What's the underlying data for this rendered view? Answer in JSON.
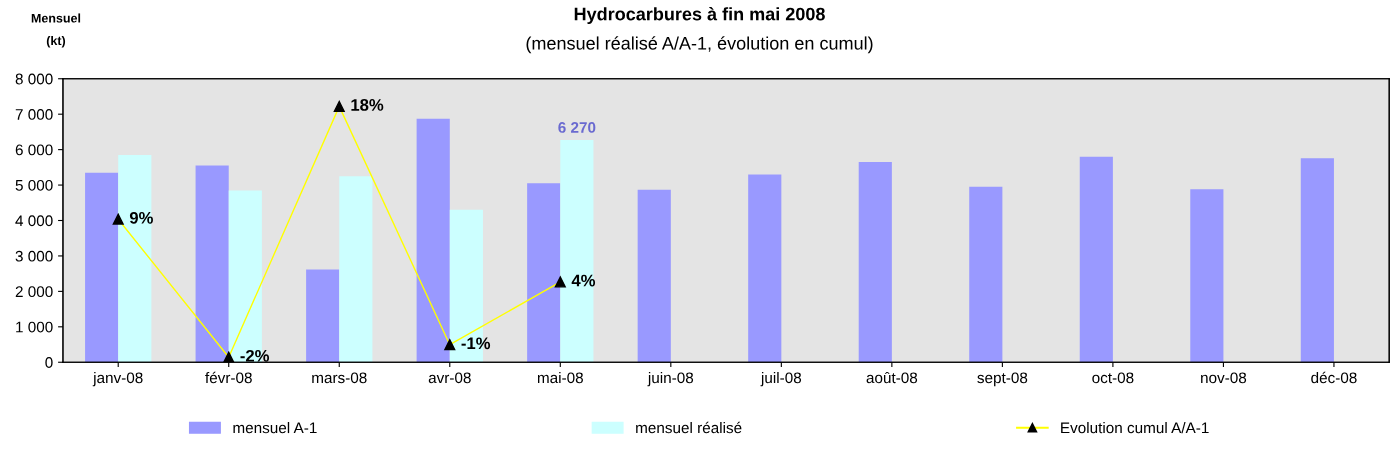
{
  "chart_data": {
    "type": "bar",
    "title": "Hydrocarbures à fin mai 2008",
    "subtitle": "(mensuel réalisé A/A-1, évolution en cumul)",
    "ylabel": "Mensuel\n(kt)",
    "categories": [
      "janv-08",
      "févr-08",
      "mars-08",
      "avr-08",
      "mai-08",
      "juin-08",
      "juil-08",
      "août-08",
      "sept-08",
      "oct-08",
      "nov-08",
      "déc-08"
    ],
    "series": [
      {
        "name": "mensuel A-1",
        "color": "#9999ff",
        "values": [
          5350,
          5550,
          2620,
          6870,
          5050,
          4870,
          5300,
          5650,
          4950,
          5800,
          4880,
          5760
        ]
      },
      {
        "name": "mensuel réalisé",
        "color": "#ccffff",
        "values": [
          5850,
          4850,
          5250,
          4300,
          6270,
          null,
          null,
          null,
          null,
          null,
          null,
          null
        ],
        "value_labels": [
          null,
          null,
          null,
          null,
          "6 270",
          null,
          null,
          null,
          null,
          null,
          null,
          null
        ]
      },
      {
        "name": "Evolution cumul A/A-1",
        "type": "line",
        "axis": "y2",
        "color": "#ffff00",
        "marker": "triangle",
        "values": [
          9,
          -2,
          18,
          -1,
          4,
          null,
          null,
          null,
          null,
          null,
          null,
          null
        ],
        "value_labels": [
          "9%",
          "-2%",
          "18%",
          "-1%",
          "4%",
          null,
          null,
          null,
          null,
          null,
          null,
          null
        ]
      }
    ],
    "ylim": [
      0,
      8000
    ],
    "yticks": [
      {
        "value": 0,
        "label": "0"
      },
      {
        "value": 1000,
        "label": "1 000"
      },
      {
        "value": 2000,
        "label": "2 000"
      },
      {
        "value": 3000,
        "label": "3 000"
      },
      {
        "value": 4000,
        "label": "4 000"
      },
      {
        "value": 5000,
        "label": "5 000"
      },
      {
        "value": 6000,
        "label": "6 000"
      },
      {
        "value": 7000,
        "label": "7 000"
      },
      {
        "value": 8000,
        "label": "8 000"
      }
    ],
    "y2lim": [
      -2.4,
      20.2
    ],
    "legend": "bottom",
    "grid": false
  }
}
